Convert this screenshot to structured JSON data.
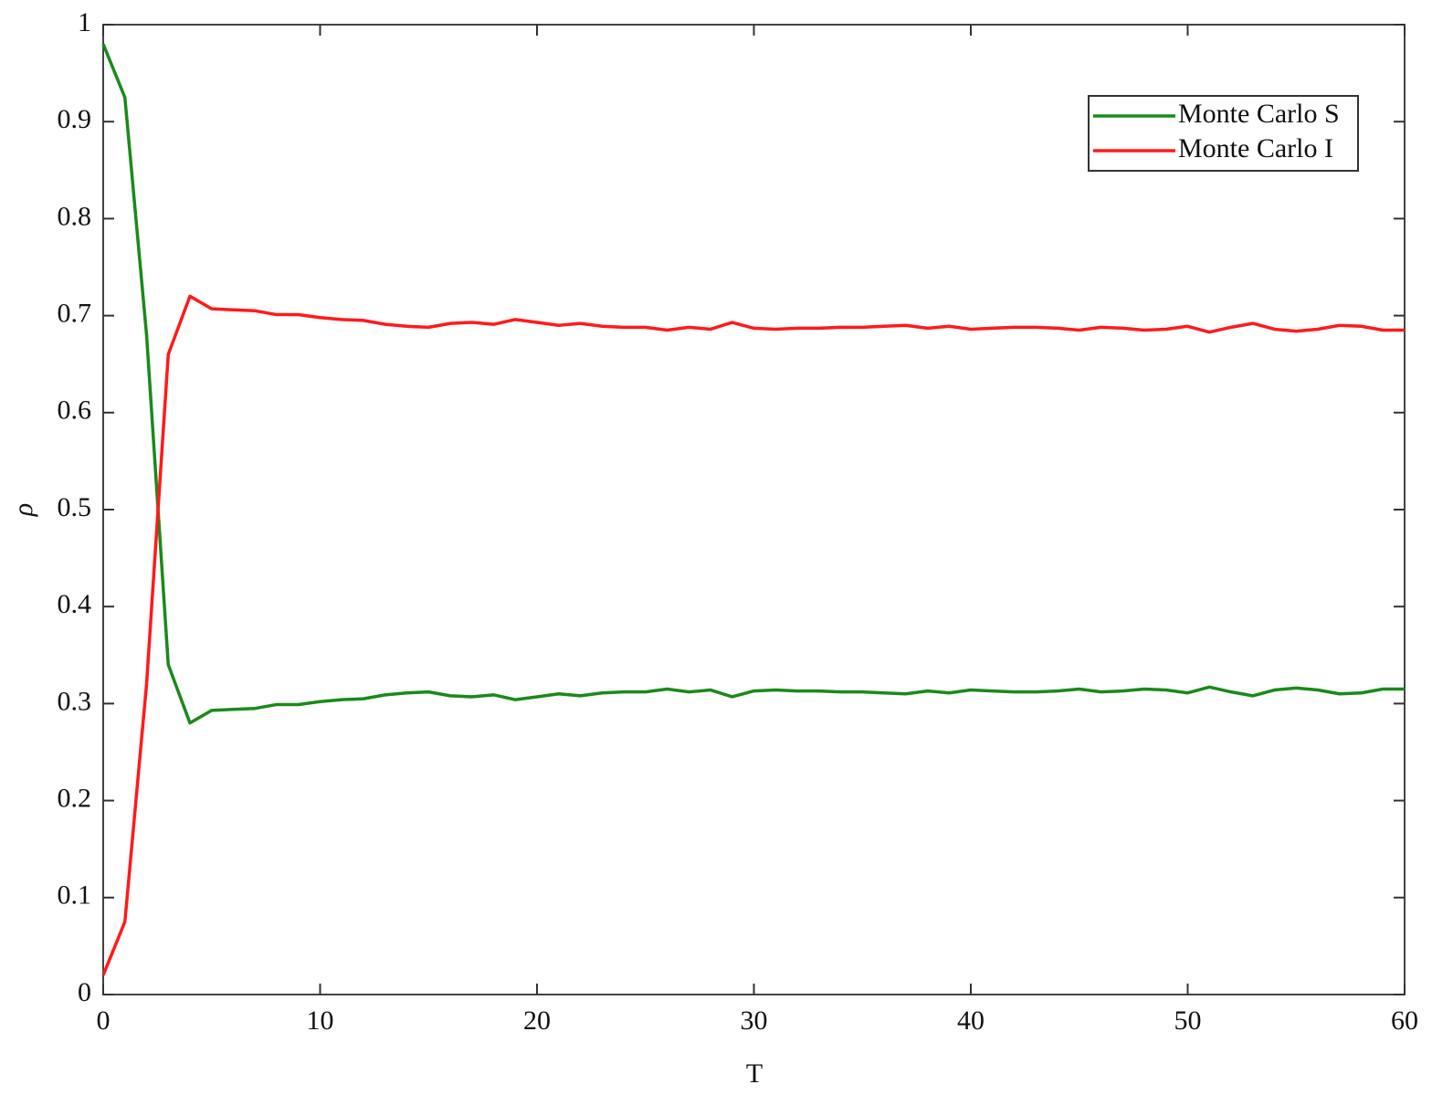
{
  "chart_data": {
    "type": "line",
    "xlabel": "T",
    "ylabel": "ρ",
    "x": [
      0,
      1,
      2,
      3,
      4,
      5,
      6,
      7,
      8,
      9,
      10,
      11,
      12,
      13,
      14,
      15,
      16,
      17,
      18,
      19,
      20,
      21,
      22,
      23,
      24,
      25,
      26,
      27,
      28,
      29,
      30,
      31,
      32,
      33,
      34,
      35,
      36,
      37,
      38,
      39,
      40,
      41,
      42,
      43,
      44,
      45,
      46,
      47,
      48,
      49,
      50,
      51,
      52,
      53,
      54,
      55,
      56,
      57,
      58,
      59,
      60
    ],
    "series": [
      {
        "name": "Monte Carlo S",
        "color": "#1a8a1a",
        "values": [
          0.98,
          0.925,
          0.68,
          0.34,
          0.28,
          0.293,
          0.294,
          0.295,
          0.299,
          0.299,
          0.302,
          0.304,
          0.305,
          0.309,
          0.311,
          0.312,
          0.308,
          0.307,
          0.309,
          0.304,
          0.307,
          0.31,
          0.308,
          0.311,
          0.312,
          0.312,
          0.315,
          0.312,
          0.314,
          0.307,
          0.313,
          0.314,
          0.313,
          0.313,
          0.312,
          0.312,
          0.311,
          0.31,
          0.313,
          0.311,
          0.314,
          0.313,
          0.312,
          0.312,
          0.313,
          0.315,
          0.312,
          0.313,
          0.315,
          0.314,
          0.311,
          0.317,
          0.312,
          0.308,
          0.314,
          0.316,
          0.314,
          0.31,
          0.311,
          0.315,
          0.315
        ]
      },
      {
        "name": "Monte Carlo I",
        "color": "#ff1a1a",
        "values": [
          0.02,
          0.075,
          0.32,
          0.66,
          0.72,
          0.707,
          0.706,
          0.705,
          0.701,
          0.701,
          0.698,
          0.696,
          0.695,
          0.691,
          0.689,
          0.688,
          0.692,
          0.693,
          0.691,
          0.696,
          0.693,
          0.69,
          0.692,
          0.689,
          0.688,
          0.688,
          0.685,
          0.688,
          0.686,
          0.693,
          0.687,
          0.686,
          0.687,
          0.687,
          0.688,
          0.688,
          0.689,
          0.69,
          0.687,
          0.689,
          0.686,
          0.687,
          0.688,
          0.688,
          0.687,
          0.685,
          0.688,
          0.687,
          0.685,
          0.686,
          0.689,
          0.683,
          0.688,
          0.692,
          0.686,
          0.684,
          0.686,
          0.69,
          0.689,
          0.685,
          0.685
        ]
      }
    ],
    "xlim": [
      0,
      60
    ],
    "xticks": [
      0,
      10,
      20,
      30,
      40,
      50,
      60
    ],
    "ylim": [
      0,
      1
    ],
    "yticks": [
      0,
      0.1,
      0.2,
      0.3,
      0.4,
      0.5,
      0.6,
      0.7,
      0.8,
      0.9,
      1
    ],
    "grid": false,
    "legend": "upper right"
  }
}
